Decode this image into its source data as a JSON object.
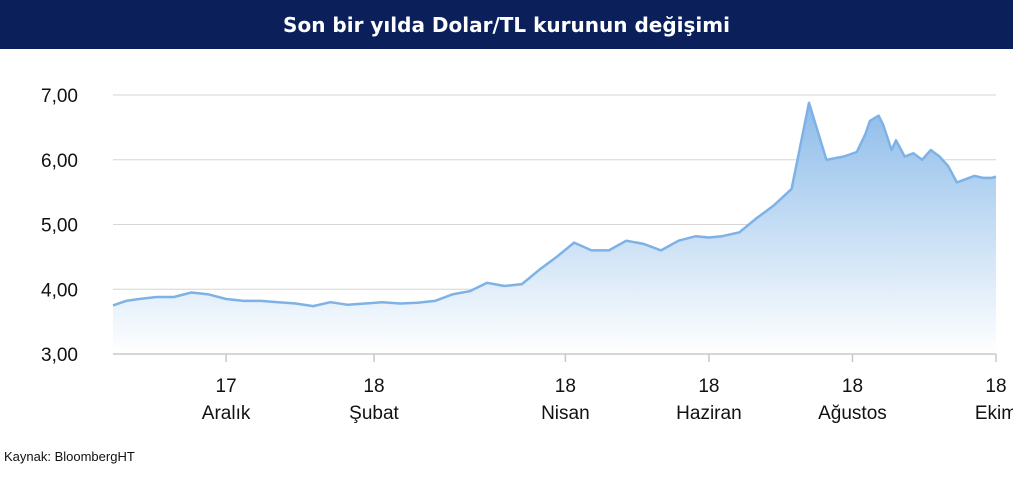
{
  "header": {
    "title": "Son bir yılda Dolar/TL kurunun değişimi"
  },
  "footer": {
    "source": "Kaynak: BloombergHT"
  },
  "colors": {
    "title_bg": "#0b1f5a",
    "line": "#7eb2e6",
    "fill_top": "#8dbcea",
    "fill_bottom": "#ffffff",
    "grid": "#d6d6d6"
  },
  "chart_data": {
    "type": "area",
    "title": "Son bir yılda Dolar/TL kurunun değişimi",
    "xlabel": "",
    "ylabel": "",
    "ylim": [
      3.0,
      7.0
    ],
    "yticks": [
      "3,00",
      "4,00",
      "5,00",
      "6,00",
      "7,00"
    ],
    "ytick_values": [
      3,
      4,
      5,
      6,
      7
    ],
    "xticks": [
      {
        "x": 26,
        "label_top": "17",
        "label_bottom": "Aralık"
      },
      {
        "x": 60,
        "label_top": "18",
        "label_bottom": "Şubat"
      },
      {
        "x": 104,
        "label_top": "18",
        "label_bottom": "Nisan"
      },
      {
        "x": 137,
        "label_top": "18",
        "label_bottom": "Haziran"
      },
      {
        "x": 170,
        "label_top": "18",
        "label_bottom": "Ağustos"
      },
      {
        "x": 203,
        "label_top": "18",
        "label_bottom": "Ekim"
      }
    ],
    "xlim": [
      0,
      203
    ],
    "grid": true,
    "series": [
      {
        "x": [
          0,
          3,
          6,
          10,
          14,
          18,
          22,
          26,
          30,
          34,
          38,
          42,
          46,
          50,
          54,
          58,
          62,
          66,
          70,
          74,
          78,
          82,
          86,
          90,
          94,
          98,
          102,
          106,
          110,
          114,
          118,
          122,
          126,
          130,
          134,
          137,
          140,
          144,
          148,
          152,
          156,
          160,
          164,
          168,
          171,
          173,
          174,
          176,
          177,
          178,
          179,
          180,
          182,
          184,
          186,
          188,
          190,
          192,
          194,
          196,
          198,
          200,
          202,
          203
        ],
        "values": [
          3.75,
          3.82,
          3.85,
          3.88,
          3.88,
          3.95,
          3.92,
          3.85,
          3.82,
          3.82,
          3.8,
          3.78,
          3.74,
          3.8,
          3.76,
          3.78,
          3.8,
          3.78,
          3.79,
          3.82,
          3.92,
          3.97,
          4.1,
          4.05,
          4.08,
          4.3,
          4.5,
          4.72,
          4.6,
          4.6,
          4.75,
          4.7,
          4.6,
          4.75,
          4.82,
          4.8,
          4.82,
          4.88,
          5.1,
          5.3,
          5.55,
          6.88,
          6.0,
          6.05,
          6.12,
          6.4,
          6.6,
          6.68,
          6.55,
          6.35,
          6.15,
          6.3,
          6.05,
          6.1,
          6.0,
          6.15,
          6.05,
          5.9,
          5.65,
          5.7,
          5.75,
          5.72,
          5.72,
          5.74
        ]
      }
    ]
  }
}
